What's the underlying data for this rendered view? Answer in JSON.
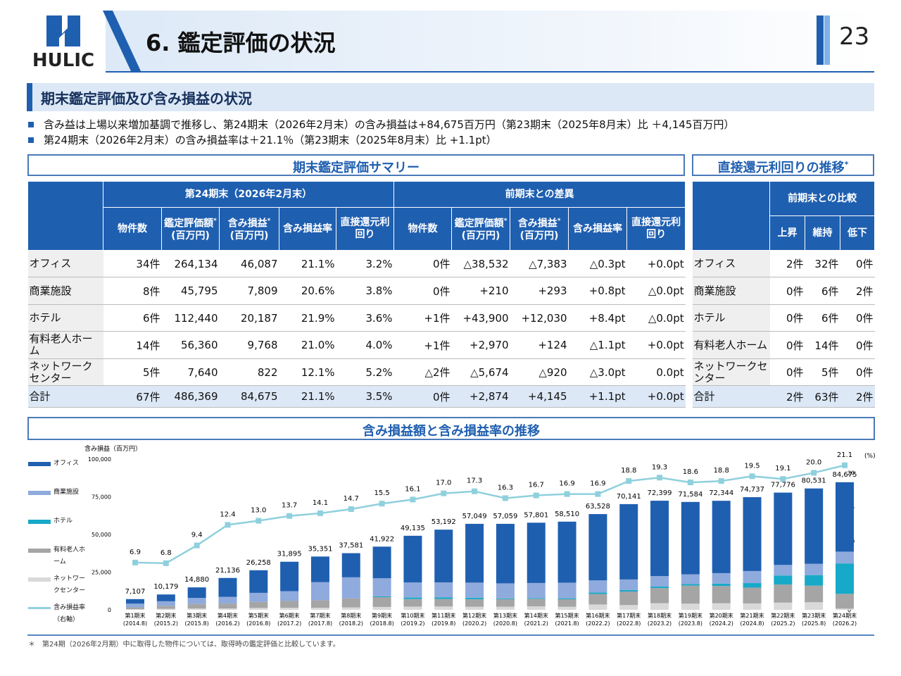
{
  "header": {
    "logo": "HULIC",
    "title": "6. 鑑定評価の状況",
    "page": "23"
  },
  "section_title": "期末鑑定評価及び含み損益の状況",
  "bullets": [
    "含み益は上場以来増加基調で推移し、第24期末（2026年2月末）の含み損益は+84,675百万円（第23期末（2025年8月末）比 ＋4,145百万円）",
    "第24期末（2026年2月末）の含み損益率は＋21.1％（第23期末（2025年8月末）比 +1.1pt）"
  ],
  "summary_table": {
    "title": "期末鑑定評価サマリー",
    "groups": [
      {
        "name": "第24期末（2026年2月末）",
        "columns": [
          {
            "label": "物件数"
          },
          {
            "label": "鑑定評価額",
            "note": "*",
            "unit": "(百万円)"
          },
          {
            "label": "含み損益",
            "note": "*",
            "unit": "(百万円)"
          },
          {
            "label": "含み損益率"
          },
          {
            "label": "直接還元利回り"
          }
        ]
      },
      {
        "name": "前期末との差異",
        "columns": [
          {
            "label": "物件数"
          },
          {
            "label": "鑑定評価額",
            "note": "*",
            "unit": "(百万円)"
          },
          {
            "label": "含み損益",
            "note": "*",
            "unit": "(百万円)"
          },
          {
            "label": "含み損益率"
          },
          {
            "label": "直接還元利回り"
          }
        ]
      }
    ],
    "rows": [
      {
        "label": "オフィス",
        "cells": [
          "34件",
          "264,134",
          "46,087",
          "21.1%",
          "3.2%",
          "0件",
          "△38,532",
          "△7,383",
          "△0.3pt",
          "+0.0pt"
        ]
      },
      {
        "label": "商業施設",
        "cells": [
          "8件",
          "45,795",
          "7,809",
          "20.6%",
          "3.8%",
          "0件",
          "+210",
          "+293",
          "+0.8pt",
          "△0.0pt"
        ]
      },
      {
        "label": "ホテル",
        "cells": [
          "6件",
          "112,440",
          "20,187",
          "21.9%",
          "3.6%",
          "+1件",
          "+43,900",
          "+12,030",
          "+8.4pt",
          "△0.0pt"
        ]
      },
      {
        "label": "有料老人ホーム",
        "cells": [
          "14件",
          "56,360",
          "9,768",
          "21.0%",
          "4.0%",
          "+1件",
          "+2,970",
          "+124",
          "△1.1pt",
          "+0.0pt"
        ]
      },
      {
        "label": "ネットワークセンター",
        "cells": [
          "5件",
          "7,640",
          "822",
          "12.1%",
          "5.2%",
          "△2件",
          "△5,674",
          "△920",
          "△3.0pt",
          "0.0pt"
        ]
      },
      {
        "label": "合計",
        "cells": [
          "67件",
          "486,369",
          "84,675",
          "21.1%",
          "3.5%",
          "0件",
          "+2,874",
          "+4,145",
          "+1.1pt",
          "+0.0pt"
        ]
      }
    ]
  },
  "yield_table": {
    "title": "直接還元利回りの推移",
    "note": "*",
    "group": "前期末との比較",
    "columns": [
      "上昇",
      "維持",
      "低下"
    ],
    "rows": [
      {
        "label": "オフィス",
        "cells": [
          "2件",
          "32件",
          "0件"
        ]
      },
      {
        "label": "商業施設",
        "cells": [
          "0件",
          "6件",
          "2件"
        ]
      },
      {
        "label": "ホテル",
        "cells": [
          "0件",
          "6件",
          "0件"
        ]
      },
      {
        "label": "有料老人ホーム",
        "cells": [
          "0件",
          "14件",
          "0件"
        ]
      },
      {
        "label": "ネットワークセンター",
        "cells": [
          "0件",
          "5件",
          "0件"
        ]
      },
      {
        "label": "合計",
        "cells": [
          "2件",
          "63件",
          "2件"
        ]
      }
    ]
  },
  "chart_data": {
    "type": "bar",
    "stacked": true,
    "title": "含み損益額と含み損益率の推移",
    "y_label": "含み損益（百万円）",
    "y2_label": "(%)",
    "categories": [
      "第1期末",
      "第2期末",
      "第3期末",
      "第4期末",
      "第5期末",
      "第6期末",
      "第7期末",
      "第8期末",
      "第9期末",
      "第10期末",
      "第11期末",
      "第12期末",
      "第13期末",
      "第14期末",
      "第15期末",
      "第16期末",
      "第17期末",
      "第18期末",
      "第19期末",
      "第20期末",
      "第21期末",
      "第22期末",
      "第23期末",
      "第24期末"
    ],
    "category_dates": [
      "(2014.8)",
      "(2015.2)",
      "(2015.8)",
      "(2016.2)",
      "(2016.8)",
      "(2017.2)",
      "(2017.8)",
      "(2018.2)",
      "(2018.8)",
      "(2019.2)",
      "(2019.8)",
      "(2020.2)",
      "(2020.8)",
      "(2021.2)",
      "(2021.8)",
      "(2022.2)",
      "(2022.8)",
      "(2023.2)",
      "(2023.8)",
      "(2024.2)",
      "(2024.8)",
      "(2025.2)",
      "(2025.8)",
      "(2026.2)"
    ],
    "total_labels": [
      "7,107",
      "10,179",
      "14,880",
      "21,136",
      "26,258",
      "31,895",
      "35,351",
      "37,581",
      "41,922",
      "49,135",
      "53,192",
      "57,049",
      "57,059",
      "57,801",
      "58,510",
      "63,528",
      "70,141",
      "72,399",
      "71,584",
      "72,344",
      "74,737",
      "77,776",
      "80,531",
      "84,675"
    ],
    "ylim": [
      0,
      100000
    ],
    "yticks": [
      0,
      {
        "value": 25000,
        "label": "25,000"
      },
      {
        "value": 50000,
        "label": "50,000"
      },
      {
        "value": 75000,
        "label": "75,000"
      },
      {
        "value": 100000,
        "label": "100,000"
      }
    ],
    "y2lim": [
      0,
      22
    ],
    "y2ticks": [
      0,
      5,
      10,
      15,
      20
    ],
    "grid": false,
    "legend": "left",
    "series": [
      {
        "name": "オフィス",
        "color": "#1f5fb0",
        "values": [
          3000,
          4500,
          7000,
          12500,
          15000,
          19500,
          17000,
          16000,
          21000,
          31000,
          35000,
          39000,
          39500,
          40000,
          40500,
          44000,
          50000,
          50000,
          48000,
          48000,
          49000,
          48000,
          50000,
          46087
        ]
      },
      {
        "name": "商業施設",
        "color": "#8faadc",
        "values": [
          2500,
          3000,
          4000,
          4500,
          6000,
          6500,
          12000,
          14000,
          12000,
          10000,
          10000,
          10000,
          10000,
          10000,
          10500,
          8000,
          7000,
          7000,
          6500,
          7000,
          8000,
          7000,
          7500,
          7809
        ]
      },
      {
        "name": "ホテル",
        "color": "#17a9c8",
        "values": [
          0,
          0,
          0,
          0,
          0,
          0,
          0,
          0,
          500,
          1000,
          1000,
          1000,
          500,
          500,
          500,
          1000,
          1000,
          1000,
          1000,
          1500,
          3000,
          6000,
          7000,
          20187
        ]
      },
      {
        "name": "有料老人ホーム",
        "color": "#a5a5a5",
        "values": [
          1200,
          2000,
          3000,
          3200,
          4000,
          4500,
          5000,
          6000,
          6500,
          5000,
          5000,
          5000,
          5000,
          5000,
          5000,
          7000,
          9000,
          10000,
          12000,
          11500,
          10500,
          12000,
          11000,
          9768
        ]
      },
      {
        "name": "ネットワークセンター",
        "color": "#d9d9d9",
        "values": [
          407,
          679,
          880,
          936,
          1258,
          1395,
          1351,
          1581,
          1922,
          2135,
          2192,
          2049,
          2059,
          2301,
          2010,
          3528,
          3141,
          4399,
          4084,
          4344,
          4237,
          4776,
          5031,
          822
        ]
      },
      {
        "name": "含み損益率",
        "legend_note": "（右軸）",
        "type": "line",
        "axis": "y2",
        "color": "#8fd0dd",
        "values": [
          6.9,
          6.8,
          9.4,
          12.4,
          13.0,
          13.7,
          14.1,
          14.7,
          15.5,
          16.1,
          17.0,
          17.3,
          16.3,
          16.7,
          16.9,
          16.9,
          18.8,
          19.3,
          18.6,
          18.8,
          19.5,
          19.1,
          20.0,
          21.1
        ],
        "value_labels": [
          "6.9",
          "6.8",
          "9.4",
          "12.4",
          "13.0",
          "13.7",
          "14.1",
          "14.7",
          "15.5",
          "16.1",
          "17.0",
          "17.3",
          "16.3",
          "16.7",
          "16.9",
          "16.9",
          "18.8",
          "19.3",
          "18.6",
          "18.8",
          "19.5",
          "19.1",
          "20.0",
          "21.1"
        ]
      }
    ]
  },
  "footnote": "＊　第24期（2026年2月期）中に取得した物件については、取得時の鑑定評価と比較しています。"
}
